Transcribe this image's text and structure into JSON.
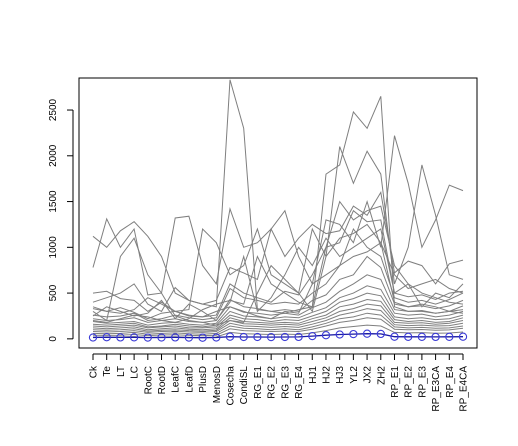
{
  "chart_data": {
    "type": "line",
    "title": "",
    "xlabel": "",
    "ylabel": "",
    "categories": [
      "Ck",
      "Te",
      "LT",
      "LC",
      "RootC",
      "RootD",
      "LeafC",
      "LeafD",
      "PlusD",
      "MenosD",
      "Cosecha",
      "CondiSL",
      "RG_E1",
      "RG_E2",
      "RG_E3",
      "RG_E4",
      "HJ1",
      "HJ2",
      "HJ3",
      "YL2",
      "JX2",
      "ZH2",
      "RP_E1",
      "RP_E2",
      "RP_E3",
      "RP_E3CA",
      "RP_E4",
      "RP_E4CA"
    ],
    "ylim": [
      -100,
      2850
    ],
    "yticks": [
      0,
      500,
      1000,
      1500,
      2000,
      2500
    ],
    "grid": false,
    "legend": "none",
    "series_color": "#7f7f7f",
    "mean_color": "#3b3bd6",
    "series": [
      {
        "values": [
          1120,
          1000,
          1180,
          1280,
          1120,
          900,
          500,
          420,
          380,
          350,
          2830,
          2300,
          320,
          300,
          280,
          320,
          350,
          1800,
          1900,
          2480,
          2300,
          2650,
          350,
          300,
          300,
          280,
          300,
          320
        ]
      },
      {
        "values": [
          780,
          1310,
          1000,
          1200,
          480,
          500,
          1320,
          1340,
          800,
          600,
          1420,
          1000,
          1050,
          1200,
          1400,
          900,
          600,
          1300,
          1250,
          1050,
          1500,
          1000,
          2220,
          1700,
          1000,
          1300,
          1680,
          1620
        ]
      },
      {
        "values": [
          500,
          520,
          440,
          420,
          300,
          400,
          300,
          320,
          1200,
          1050,
          700,
          800,
          1200,
          700,
          600,
          500,
          300,
          900,
          2100,
          1700,
          2050,
          1800,
          600,
          1000,
          1900,
          1350,
          700,
          650
        ]
      },
      {
        "values": [
          400,
          450,
          500,
          600,
          380,
          300,
          560,
          420,
          380,
          420,
          780,
          720,
          650,
          1200,
          900,
          1100,
          1250,
          1150,
          1180,
          1450,
          1350,
          1600,
          720,
          850,
          800,
          600,
          820,
          860
        ]
      },
      {
        "values": [
          330,
          300,
          340,
          290,
          220,
          280,
          300,
          250,
          240,
          260,
          600,
          500,
          450,
          400,
          520,
          480,
          700,
          1000,
          1050,
          1400,
          1280,
          1300,
          500,
          460,
          480,
          430,
          500,
          520
        ]
      },
      {
        "values": [
          260,
          240,
          250,
          280,
          200,
          220,
          260,
          230,
          210,
          230,
          550,
          450,
          420,
          380,
          400,
          380,
          500,
          600,
          800,
          1200,
          1000,
          900,
          450,
          400,
          420,
          380,
          430,
          500
        ]
      },
      {
        "values": [
          220,
          200,
          210,
          230,
          180,
          200,
          220,
          190,
          180,
          200,
          430,
          350,
          330,
          300,
          320,
          300,
          420,
          480,
          650,
          700,
          900,
          780,
          380,
          350,
          360,
          330,
          360,
          420
        ]
      },
      {
        "values": [
          190,
          170,
          180,
          190,
          150,
          170,
          180,
          160,
          150,
          170,
          350,
          290,
          280,
          260,
          280,
          260,
          340,
          400,
          520,
          600,
          700,
          650,
          320,
          300,
          310,
          280,
          300,
          360
        ]
      },
      {
        "values": [
          160,
          150,
          160,
          170,
          130,
          140,
          160,
          140,
          130,
          150,
          300,
          250,
          240,
          220,
          240,
          230,
          290,
          340,
          450,
          500,
          580,
          540,
          280,
          260,
          270,
          240,
          260,
          300
        ]
      },
      {
        "values": [
          140,
          130,
          140,
          150,
          120,
          130,
          140,
          120,
          120,
          130,
          260,
          220,
          210,
          190,
          210,
          200,
          250,
          300,
          400,
          440,
          500,
          470,
          240,
          220,
          230,
          210,
          220,
          260
        ]
      },
      {
        "values": [
          120,
          110,
          120,
          130,
          100,
          110,
          120,
          105,
          100,
          110,
          230,
          190,
          180,
          170,
          180,
          170,
          220,
          260,
          350,
          380,
          430,
          410,
          210,
          190,
          200,
          180,
          190,
          230
        ]
      },
      {
        "values": [
          100,
          95,
          100,
          110,
          85,
          95,
          100,
          90,
          85,
          95,
          200,
          165,
          160,
          150,
          160,
          150,
          190,
          230,
          300,
          330,
          380,
          360,
          180,
          170,
          175,
          160,
          170,
          200
        ]
      },
      {
        "values": [
          80,
          75,
          80,
          90,
          70,
          80,
          85,
          75,
          70,
          80,
          170,
          140,
          135,
          125,
          135,
          125,
          160,
          200,
          260,
          290,
          330,
          310,
          155,
          145,
          150,
          140,
          145,
          170
        ]
      },
      {
        "values": [
          60,
          55,
          60,
          70,
          50,
          60,
          65,
          55,
          50,
          60,
          140,
          115,
          110,
          100,
          110,
          100,
          130,
          170,
          220,
          240,
          280,
          260,
          130,
          120,
          125,
          115,
          120,
          140
        ]
      },
      {
        "values": [
          40,
          38,
          40,
          48,
          35,
          42,
          45,
          38,
          35,
          40,
          110,
          90,
          85,
          80,
          85,
          80,
          105,
          140,
          180,
          200,
          230,
          215,
          105,
          100,
          102,
          95,
          98,
          115
        ]
      },
      {
        "values": [
          20,
          18,
          20,
          25,
          16,
          20,
          22,
          18,
          16,
          20,
          70,
          55,
          52,
          48,
          52,
          48,
          65,
          90,
          120,
          135,
          150,
          140,
          70,
          65,
          68,
          62,
          64,
          75
        ]
      },
      {
        "values": [
          300,
          200,
          900,
          1100,
          700,
          500,
          250,
          200,
          180,
          150,
          200,
          180,
          500,
          800,
          650,
          500,
          1200,
          900,
          1100,
          1150,
          1250,
          1050,
          400,
          350,
          380,
          350,
          300,
          280
        ]
      },
      {
        "values": [
          250,
          350,
          300,
          250,
          280,
          420,
          220,
          380,
          300,
          200,
          400,
          900,
          300,
          450,
          700,
          1000,
          800,
          1100,
          900,
          1000,
          1100,
          1200,
          500,
          600,
          350,
          500,
          450,
          600
        ]
      },
      {
        "values": [
          200,
          180,
          220,
          260,
          240,
          200,
          180,
          220,
          320,
          380,
          420,
          380,
          900,
          600,
          500,
          400,
          350,
          1000,
          1500,
          1300,
          1400,
          1450,
          800,
          600,
          500,
          450,
          400,
          380
        ]
      },
      {
        "values": [
          350,
          300,
          280,
          320,
          450,
          380,
          300,
          260,
          240,
          300,
          350,
          300,
          250,
          220,
          300,
          280,
          600,
          700,
          800,
          900,
          950,
          1050,
          700,
          550,
          600,
          650,
          550,
          500
        ]
      }
    ],
    "mean": [
      15,
      18,
      16,
      17,
      14,
      15,
      16,
      14,
      13,
      15,
      24,
      20,
      20,
      19,
      20,
      21,
      30,
      40,
      48,
      52,
      56,
      54,
      24,
      22,
      22,
      21,
      22,
      24
    ]
  }
}
